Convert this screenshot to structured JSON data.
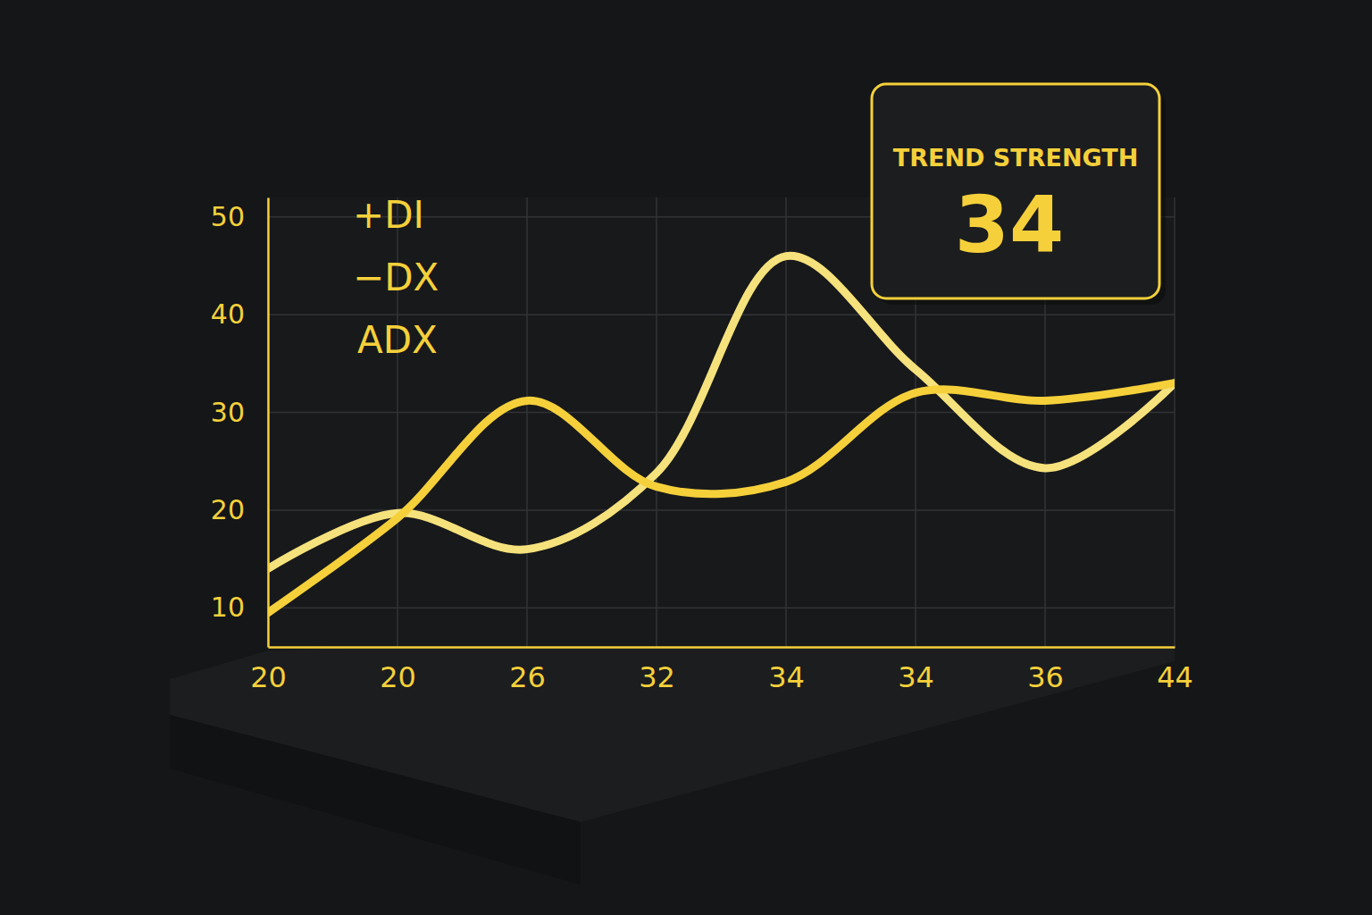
{
  "chart_data": {
    "type": "line",
    "categories": [
      "20",
      "20",
      "26",
      "32",
      "34",
      "34",
      "36",
      "44"
    ],
    "series": [
      {
        "name": "+DI",
        "color": "#f6e27c",
        "values": [
          14,
          19.7,
          16,
          23.8,
          46,
          34.4,
          24.3,
          33
        ]
      },
      {
        "name": "−DX",
        "color": "#f5d03a",
        "values": [
          9.5,
          19.2,
          31.2,
          22.4,
          22.9,
          32,
          31.2,
          33
        ]
      }
    ],
    "annotations": [
      "ADX"
    ],
    "callout": {
      "title": "TREND STRENGTH",
      "value": 34
    },
    "ylim": [
      6,
      52
    ],
    "yticks": [
      10,
      20,
      30,
      40,
      50
    ],
    "grid": true
  }
}
